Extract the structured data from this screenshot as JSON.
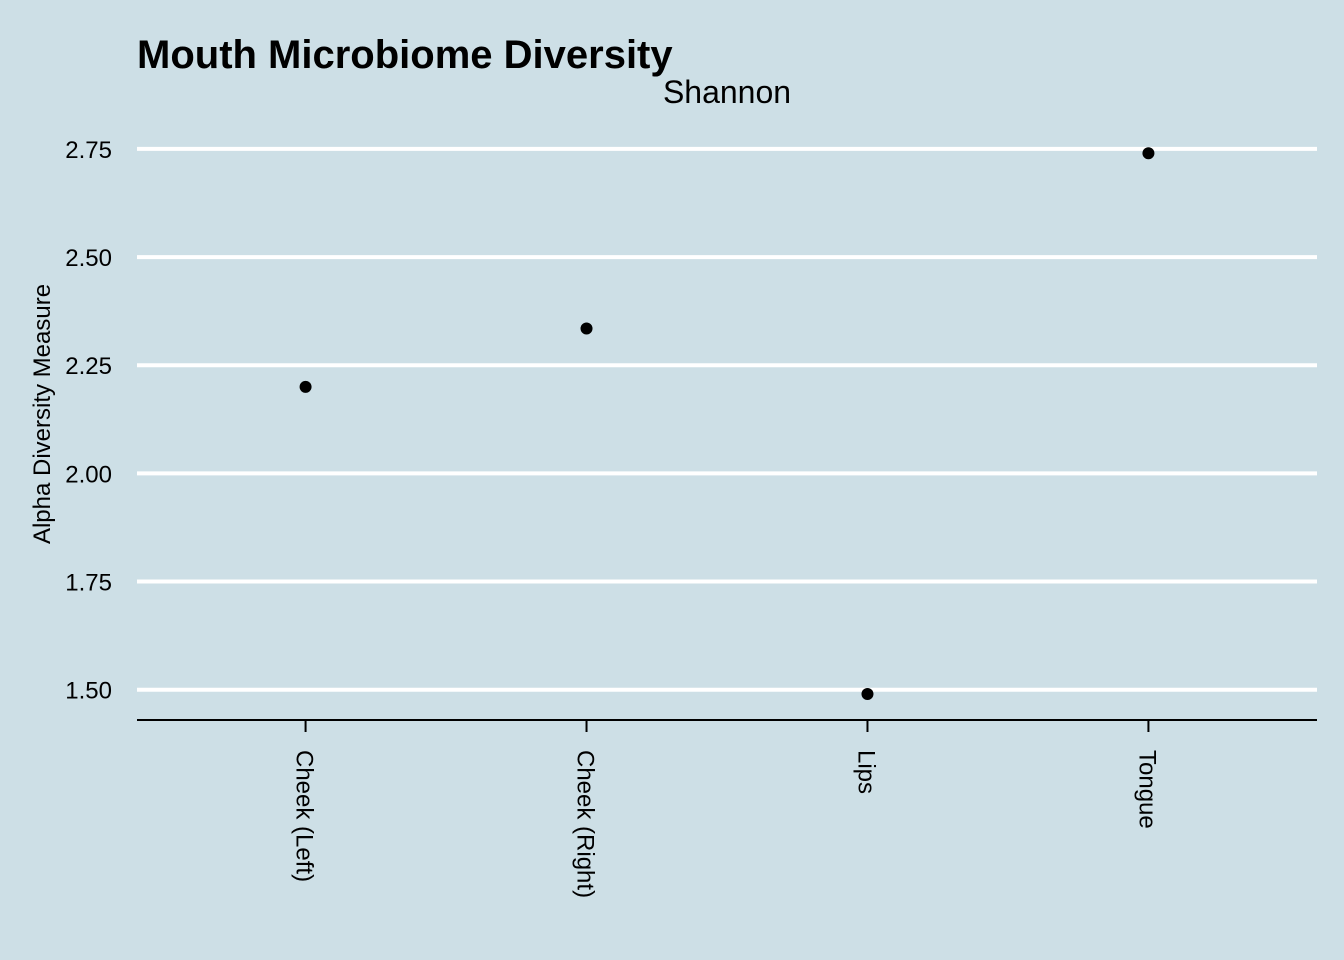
{
  "chart_data": {
    "type": "scatter",
    "title": "Mouth Microbiome Diversity",
    "facet_label": "Shannon",
    "xlabel": "",
    "ylabel": "Alpha Diversity Measure",
    "categories": [
      "Cheek (Left)",
      "Cheek (Right)",
      "Lips",
      "Tongue"
    ],
    "values": [
      2.2,
      2.335,
      1.49,
      2.74
    ],
    "ylim": [
      1.43,
      2.84
    ],
    "yticks": [
      1.5,
      1.75,
      2.0,
      2.25,
      2.5,
      2.75
    ],
    "ytick_labels": [
      "1.50",
      "1.75",
      "2.00",
      "2.25",
      "2.50",
      "2.75"
    ],
    "grid": "horizontal major lines",
    "legend": "none",
    "colors": {
      "background": "#cddfe6",
      "gridline": "#ffffff",
      "point": "#000000",
      "axis": "#000000"
    }
  }
}
